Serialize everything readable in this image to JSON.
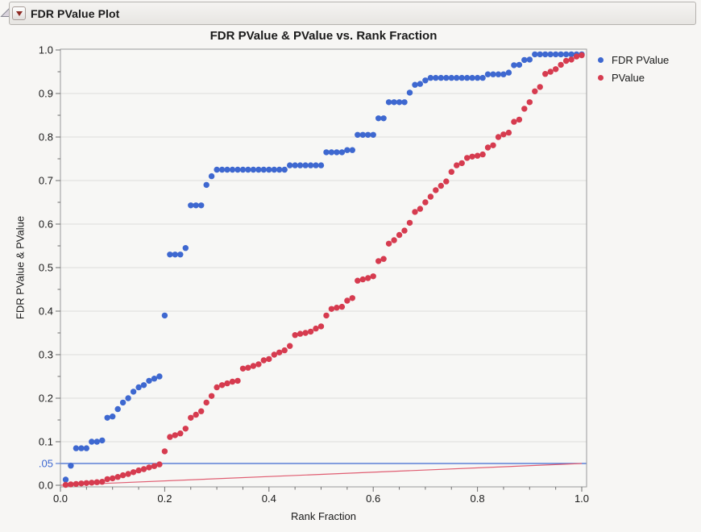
{
  "header": {
    "title": "FDR PValue Plot",
    "disclosure_icon": "open-disclosure-triangle",
    "menu_icon": "red-triangle-menu"
  },
  "chart": {
    "title": "FDR PValue & PValue vs. Rank Fraction",
    "x_axis": {
      "title": "Rank Fraction",
      "min": 0,
      "max": 1,
      "major_step": 0.2,
      "minor_step": 0.05,
      "major_ticks": [
        "0.0",
        "0.2",
        "0.4",
        "0.6",
        "0.8",
        "1.0"
      ]
    },
    "y_axis": {
      "title": "FDR PValue & PValue",
      "min": 0,
      "max": 1,
      "major_step": 0.1,
      "minor_step": 0.05,
      "major_ticks": [
        "0.0",
        "0.1",
        "0.2",
        "0.3",
        "0.4",
        "0.5",
        "0.6",
        "0.7",
        "0.8",
        "0.9",
        "1.0"
      ],
      "special_tick": {
        "value": 0.05,
        "label": ".05",
        "color": "#3e68d0"
      }
    },
    "legend": [
      {
        "label": "FDR PValue",
        "color": "#3e68d0"
      },
      {
        "label": "PValue",
        "color": "#d63b4f"
      }
    ],
    "ref_lines": [
      {
        "type": "horizontal",
        "y": 0.05,
        "color": "#3e68d0"
      },
      {
        "type": "segment",
        "x1": 0,
        "y1": 0,
        "x2": 1,
        "y2": 0.05,
        "color": "#e05e72"
      }
    ]
  },
  "chart_data": {
    "type": "scatter",
    "title": "FDR PValue & PValue vs. Rank Fraction",
    "xlabel": "Rank Fraction",
    "ylabel": "FDR PValue & PValue",
    "xlim": [
      0,
      1
    ],
    "ylim": [
      0,
      1
    ],
    "grid": "horizontal-only",
    "legend_position": "right-top",
    "x_start": 0.01,
    "x_step": 0.01,
    "series": [
      {
        "name": "FDR PValue",
        "color": "#3e68d0",
        "values": [
          0.013,
          0.045,
          0.085,
          0.085,
          0.085,
          0.1,
          0.1,
          0.103,
          0.155,
          0.158,
          0.175,
          0.19,
          0.2,
          0.215,
          0.225,
          0.23,
          0.24,
          0.245,
          0.25,
          0.39,
          0.53,
          0.53,
          0.53,
          0.545,
          0.643,
          0.643,
          0.643,
          0.69,
          0.71,
          0.725,
          0.725,
          0.725,
          0.725,
          0.725,
          0.725,
          0.725,
          0.725,
          0.725,
          0.725,
          0.725,
          0.725,
          0.725,
          0.725,
          0.735,
          0.735,
          0.735,
          0.735,
          0.735,
          0.735,
          0.735,
          0.765,
          0.765,
          0.765,
          0.765,
          0.77,
          0.77,
          0.805,
          0.805,
          0.805,
          0.805,
          0.843,
          0.843,
          0.88,
          0.88,
          0.88,
          0.88,
          0.902,
          0.92,
          0.922,
          0.93,
          0.936,
          0.936,
          0.936,
          0.936,
          0.936,
          0.936,
          0.936,
          0.936,
          0.936,
          0.936,
          0.936,
          0.944,
          0.944,
          0.944,
          0.944,
          0.948,
          0.965,
          0.966,
          0.977,
          0.978,
          0.99,
          0.99,
          0.99,
          0.99,
          0.99,
          0.99,
          0.99,
          0.99,
          0.99,
          0.99
        ]
      },
      {
        "name": "PValue",
        "color": "#d63b4f",
        "values": [
          0.001,
          0.002,
          0.003,
          0.004,
          0.005,
          0.006,
          0.007,
          0.008,
          0.014,
          0.016,
          0.019,
          0.023,
          0.026,
          0.03,
          0.034,
          0.037,
          0.041,
          0.044,
          0.048,
          0.078,
          0.111,
          0.115,
          0.119,
          0.13,
          0.155,
          0.162,
          0.17,
          0.19,
          0.205,
          0.225,
          0.23,
          0.234,
          0.238,
          0.24,
          0.268,
          0.27,
          0.274,
          0.278,
          0.287,
          0.29,
          0.3,
          0.305,
          0.31,
          0.32,
          0.345,
          0.348,
          0.35,
          0.353,
          0.36,
          0.365,
          0.39,
          0.405,
          0.408,
          0.41,
          0.424,
          0.43,
          0.47,
          0.473,
          0.476,
          0.48,
          0.515,
          0.52,
          0.555,
          0.563,
          0.575,
          0.585,
          0.603,
          0.628,
          0.635,
          0.65,
          0.663,
          0.678,
          0.688,
          0.698,
          0.72,
          0.735,
          0.74,
          0.752,
          0.755,
          0.757,
          0.76,
          0.776,
          0.781,
          0.8,
          0.806,
          0.81,
          0.835,
          0.84,
          0.865,
          0.88,
          0.905,
          0.915,
          0.945,
          0.95,
          0.956,
          0.966,
          0.975,
          0.978,
          0.985,
          0.988
        ]
      }
    ]
  },
  "colors": {
    "plot_bg": "#f7f7f5",
    "page_bg": "#f7f6f4",
    "gridline": "#dcdcda",
    "frame": "#9a9a9a",
    "tick": "#6e6e6e",
    "tick_label": "#1b1b1b"
  }
}
